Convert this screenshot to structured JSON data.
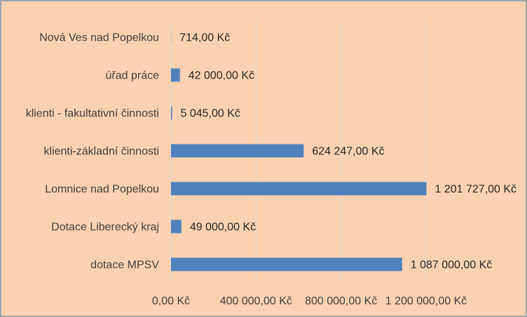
{
  "chart_data": {
    "type": "bar",
    "orientation": "horizontal",
    "categories": [
      "Nová Ves nad Popelkou",
      "úřad práce",
      "klienti - fakultativní činnosti",
      "klienti-základní činnosti",
      "Lomnice nad Popelkou",
      "Dotace Liberecký kraj",
      "dotace MPSV"
    ],
    "values": [
      714,
      42000,
      5045,
      624247,
      1201727,
      49000,
      1087000
    ],
    "value_labels": [
      "714,00 Kč",
      "42 000,00 Kč",
      "5 045,00 Kč",
      "624 247,00 Kč",
      "1 201 727,00 Kč",
      "49 000,00 Kč",
      "1 087 000,00 Kč"
    ],
    "x_ticks": [
      0,
      400000,
      800000,
      1200000
    ],
    "x_tick_labels": [
      "0,00 Kč",
      "400 000,00 Kč",
      "800 000,00 Kč",
      "1 200 000,00 Kč"
    ],
    "xlim": [
      0,
      1200000
    ],
    "title": "",
    "xlabel": "",
    "ylabel": "",
    "grid": true,
    "legend": "none",
    "colors": {
      "bar": "#4F81BD",
      "background": "#FAD2B2",
      "border": "#9CA5A9",
      "grid": "#D9D9D9"
    }
  }
}
